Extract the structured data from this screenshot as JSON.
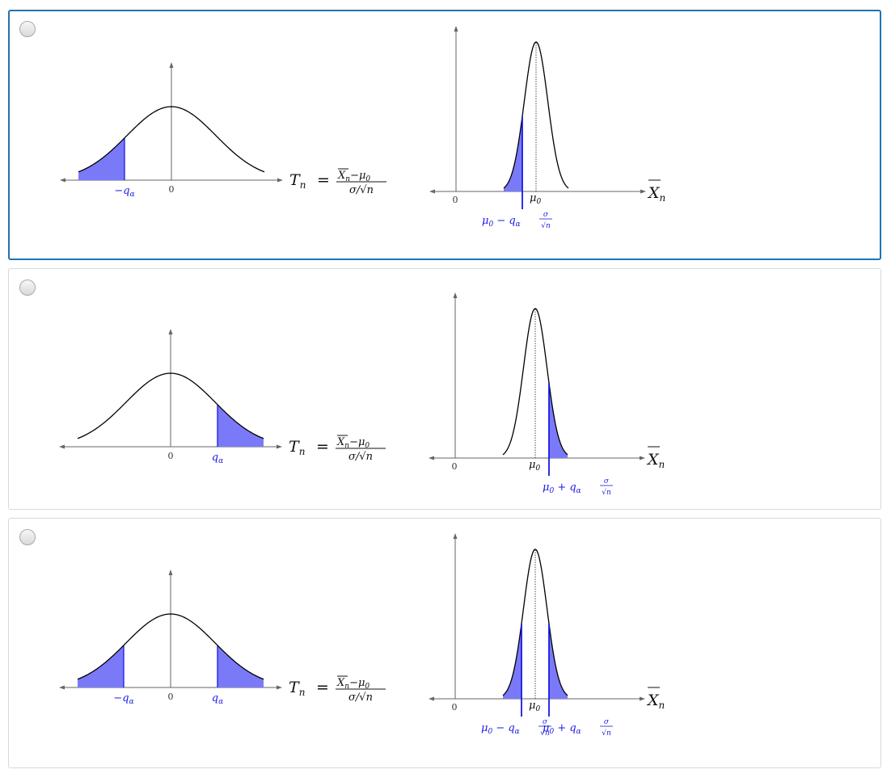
{
  "options": [
    {
      "id": "opt-0",
      "selected": true,
      "tail": "left",
      "left_plot": {
        "zero_label": "0",
        "neg_q_label": "−q",
        "pos_q_label": "",
        "alpha": "α",
        "T_lhs": "T",
        "T_sub": "n",
        "T_eq": "=",
        "frac_num_X": "X",
        "frac_num_sub": "n",
        "frac_num_minus": "−μ",
        "frac_num_sub0": "0",
        "frac_den": "σ/√n"
      },
      "right_plot": {
        "zero_label": "0",
        "mu0_label": "μ",
        "mu0_sub": "0",
        "xbar_label": "X",
        "xbar_sub": "n",
        "left_bound_label": "μ",
        "left_bound_expr": "− q",
        "right_bound_label": "",
        "right_bound_expr": "",
        "sigma": "σ",
        "sqrt_n": "√n"
      }
    },
    {
      "id": "opt-1",
      "selected": false,
      "tail": "right",
      "left_plot": {
        "zero_label": "0",
        "neg_q_label": "",
        "pos_q_label": "q",
        "alpha": "α",
        "T_lhs": "T",
        "T_sub": "n",
        "T_eq": "=",
        "frac_num_X": "X",
        "frac_num_sub": "n",
        "frac_num_minus": "−μ",
        "frac_num_sub0": "0",
        "frac_den": "σ/√n"
      },
      "right_plot": {
        "zero_label": "0",
        "mu0_label": "μ",
        "mu0_sub": "0",
        "xbar_label": "X",
        "xbar_sub": "n",
        "left_bound_label": "",
        "left_bound_expr": "",
        "right_bound_label": "μ",
        "right_bound_expr": "+ q",
        "sigma": "σ",
        "sqrt_n": "√n"
      }
    },
    {
      "id": "opt-2",
      "selected": false,
      "tail": "both",
      "left_plot": {
        "zero_label": "0",
        "neg_q_label": "−q",
        "pos_q_label": "q",
        "alpha": "α",
        "T_lhs": "T",
        "T_sub": "n",
        "T_eq": "=",
        "frac_num_X": "X",
        "frac_num_sub": "n",
        "frac_num_minus": "−μ",
        "frac_num_sub0": "0",
        "frac_den": "σ/√n"
      },
      "right_plot": {
        "zero_label": "0",
        "mu0_label": "μ",
        "mu0_sub": "0",
        "xbar_label": "X",
        "xbar_sub": "n",
        "left_bound_label": "μ",
        "left_bound_expr": "− q",
        "right_bound_label": "μ",
        "right_bound_expr": "+ q",
        "sigma": "σ",
        "sqrt_n": "√n"
      }
    }
  ],
  "colors": {
    "selected_border": "#1f74b3",
    "shade": "#7a7af8",
    "label_blue": "#1a1ae6"
  }
}
